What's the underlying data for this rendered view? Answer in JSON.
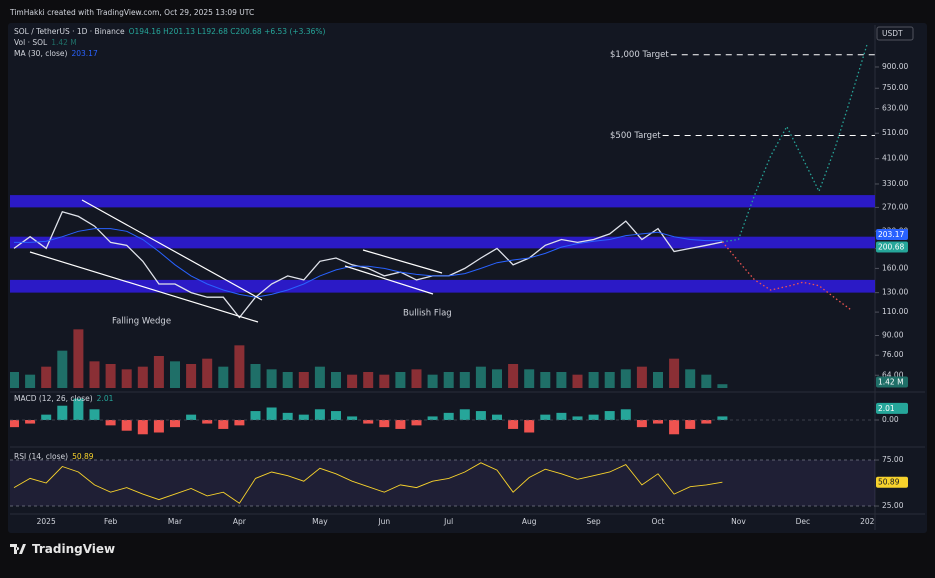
{
  "header": "TimHakki created with TradingView.com, Oct 29, 2025 13:09 UTC",
  "branding": "TradingView",
  "chart_data": [
    {
      "type": "line",
      "log_scale": true,
      "currency": "USDT",
      "ohlc": "O194.16 H201.13 L192.68 C200.68 +6.53 (+3.36%)",
      "categories": [
        null,
        null,
        "2025",
        null,
        null,
        null,
        "Feb",
        null,
        null,
        null,
        "Mar",
        null,
        null,
        null,
        "Apr",
        null,
        null,
        null,
        null,
        "May",
        null,
        null,
        null,
        "Jun",
        null,
        null,
        null,
        "Jul",
        null,
        null,
        null,
        null,
        "Aug",
        null,
        null,
        null,
        "Sep",
        null,
        null,
        null,
        "Oct",
        null,
        null,
        null,
        null,
        "Nov",
        null,
        null,
        null,
        "Dec",
        null,
        null,
        null,
        "202"
      ],
      "series": [
        {
          "name": "SOL / TetherUS · 1D · Binance",
          "color": "#e0e3eb",
          "values": [
            190,
            210,
            190,
            260,
            250,
            230,
            200,
            195,
            170,
            140,
            140,
            130,
            125,
            125,
            105,
            125,
            140,
            150,
            145,
            170,
            175,
            165,
            160,
            150,
            155,
            145,
            150,
            150,
            160,
            175,
            190,
            165,
            175,
            195,
            205,
            200,
            205,
            215,
            240,
            205,
            225,
            185,
            190,
            195,
            200.68,
            null,
            null,
            null,
            null,
            null,
            null,
            null,
            null,
            null
          ]
        },
        {
          "name": "MA (30, close)",
          "color": "#2962ff",
          "values": [
            200,
            200,
            202,
            210,
            220,
            225,
            225,
            220,
            205,
            185,
            165,
            150,
            140,
            133,
            128,
            125,
            128,
            133,
            140,
            150,
            158,
            163,
            163,
            160,
            155,
            152,
            150,
            150,
            153,
            160,
            168,
            172,
            175,
            182,
            192,
            198,
            202,
            205,
            212,
            215,
            218,
            210,
            205,
            203,
            203,
            null,
            null,
            null,
            null,
            null,
            null,
            null,
            null,
            null
          ]
        },
        {
          "color": "#26a69a",
          "style": "dotted",
          "values": [
            null,
            null,
            null,
            null,
            null,
            null,
            null,
            null,
            null,
            null,
            null,
            null,
            null,
            null,
            null,
            null,
            null,
            null,
            null,
            null,
            null,
            null,
            null,
            null,
            null,
            null,
            null,
            null,
            null,
            null,
            null,
            null,
            null,
            null,
            null,
            null,
            null,
            null,
            null,
            null,
            null,
            null,
            null,
            null,
            201,
            205,
            300,
            420,
            540,
            410,
            310,
            450,
            700,
            1100
          ]
        },
        {
          "color": "#ef5350",
          "style": "dotted",
          "values": [
            null,
            null,
            null,
            null,
            null,
            null,
            null,
            null,
            null,
            null,
            null,
            null,
            null,
            null,
            null,
            null,
            null,
            null,
            null,
            null,
            null,
            null,
            null,
            null,
            null,
            null,
            null,
            null,
            null,
            null,
            null,
            null,
            null,
            null,
            null,
            null,
            null,
            null,
            null,
            null,
            null,
            null,
            null,
            null,
            201,
            170,
            145,
            133,
            137,
            142,
            138,
            124,
            112,
            null
          ]
        }
      ],
      "ylim": [
        56.4,
        1290
      ],
      "yticks": [
        {
          "value": 64,
          "label": "64.00"
        },
        {
          "value": 76,
          "label": "76.00"
        },
        {
          "value": 90,
          "label": "90.00"
        },
        {
          "value": 110,
          "label": "110.00"
        },
        {
          "value": 130,
          "label": "130.00"
        },
        {
          "value": 160,
          "label": "160.00"
        },
        {
          "value": 190,
          "label": "190.00"
        },
        {
          "value": 220,
          "label": "220.00"
        },
        {
          "value": 270,
          "label": "270.00"
        },
        {
          "value": 330,
          "label": "330.00"
        },
        {
          "value": 410,
          "label": "410.00"
        },
        {
          "value": 510,
          "label": "510.00"
        },
        {
          "value": 630,
          "label": "630.00"
        },
        {
          "value": 750,
          "label": "750.00"
        },
        {
          "value": 900,
          "label": "900.00"
        }
      ],
      "zones": [
        {
          "from": 270,
          "to": 300,
          "color": "#2f1bd8"
        },
        {
          "from": 190,
          "to": 210,
          "color": "#2f1bd8"
        },
        {
          "from": 130,
          "to": 145,
          "color": "#2f1bd8"
        }
      ],
      "targets": [
        {
          "value": 1000,
          "label": "$1,000 Target"
        },
        {
          "value": 500,
          "label": "$500 Target"
        }
      ],
      "annotations": [
        "Falling Wedge",
        "Bullish Flag"
      ],
      "price_labels": [
        {
          "value": 203.17,
          "color": "#2962ff"
        },
        {
          "value": 200.68,
          "color": "#26a69a"
        }
      ]
    },
    {
      "type": "bar",
      "name": "Vol · SOL",
      "up_color": "#1f6f68",
      "down_color": "#8a2f35",
      "values": [
        6,
        5,
        8,
        14,
        22,
        10,
        9,
        7,
        8,
        12,
        10,
        9,
        11,
        8,
        16,
        9,
        7,
        6,
        6,
        8,
        6,
        5,
        6,
        5,
        6,
        7,
        5,
        6,
        6,
        8,
        7,
        9,
        7,
        6,
        6,
        5,
        6,
        6,
        7,
        8,
        6,
        11,
        7,
        5,
        1.42,
        null,
        null,
        null,
        null,
        null,
        null,
        null,
        null,
        null
      ],
      "value_labels": [
        null,
        null,
        null,
        null,
        null,
        null,
        null,
        null,
        null,
        null,
        null,
        null,
        null,
        null,
        null,
        null,
        null,
        null,
        null,
        null,
        null,
        null,
        null,
        null,
        null,
        null,
        null,
        null,
        null,
        null,
        null,
        null,
        null,
        null,
        null,
        null,
        null,
        null,
        null,
        null,
        null,
        null,
        null,
        null,
        "1.42 M",
        null,
        null,
        null,
        null,
        null,
        null,
        null,
        null,
        null
      ],
      "ylim": [
        0,
        30
      ]
    },
    {
      "type": "bar",
      "name": "MACD (12, 26, close)",
      "up_color": "#26a69a",
      "down_color": "#ef5350",
      "values": [
        -4,
        -2,
        3,
        8,
        12,
        6,
        -3,
        -6,
        -8,
        -7,
        -4,
        3,
        -2,
        -5,
        -3,
        5,
        7,
        4,
        3,
        6,
        5,
        2,
        -2,
        -4,
        -5,
        -3,
        2,
        4,
        6,
        5,
        3,
        -5,
        -7,
        3,
        4,
        2,
        3,
        5,
        6,
        -4,
        -2,
        -8,
        -5,
        -2,
        2.01,
        null,
        null,
        null,
        null,
        null,
        null,
        null,
        null,
        null
      ],
      "ylim": [
        -14,
        14
      ],
      "yticks": [
        {
          "value": 0,
          "label": "0.00"
        }
      ]
    },
    {
      "type": "line",
      "name": "RSI (14, close)",
      "color": "#f7d22c",
      "values": [
        45,
        55,
        50,
        68,
        62,
        48,
        40,
        45,
        38,
        32,
        38,
        44,
        36,
        40,
        28,
        55,
        62,
        58,
        52,
        66,
        60,
        52,
        46,
        40,
        48,
        45,
        52,
        55,
        62,
        72,
        64,
        40,
        56,
        65,
        60,
        54,
        58,
        62,
        70,
        48,
        60,
        38,
        46,
        48,
        50.89,
        null,
        null,
        null,
        null,
        null,
        null,
        null,
        null,
        null
      ],
      "ylim": [
        18.5,
        85.9
      ],
      "yticks": [
        {
          "value": 25,
          "label": "25.00"
        },
        {
          "value": 75,
          "label": "75.00"
        }
      ]
    }
  ]
}
